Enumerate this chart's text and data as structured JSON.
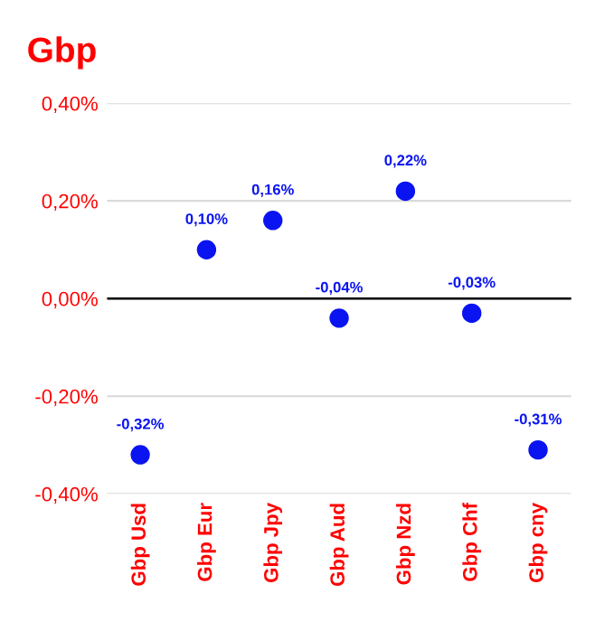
{
  "chart_data": {
    "type": "scatter",
    "title": "Gbp",
    "categories": [
      "Gbp Usd",
      "Gbp Eur",
      "Gbp Jpy",
      "Gbp Aud",
      "Gbp Nzd",
      "Gbp Chf",
      "Gbp cny"
    ],
    "series": [
      {
        "color": "#0a14f0",
        "values": [
          -0.32,
          0.1,
          0.16,
          -0.04,
          0.22,
          -0.03,
          -0.31
        ],
        "value_labels": [
          "-0,32%",
          "0,10%",
          "0,16%",
          "-0,04%",
          "0,22%",
          "-0,03%",
          "-0,31%"
        ]
      }
    ],
    "ylim": [
      -0.4,
      0.4
    ],
    "yticks": [
      {
        "value": -0.4,
        "label": "-0,40%"
      },
      {
        "value": -0.2,
        "label": "-0,20%"
      },
      {
        "value": 0,
        "label": "0,00%"
      },
      {
        "value": 0.2,
        "label": "0,20%"
      },
      {
        "value": 0.4,
        "label": "0,40%"
      }
    ],
    "ref_lines": [
      {
        "axis": "y",
        "value": 0,
        "color": "#000000"
      }
    ],
    "grid": "y",
    "marker": "circle",
    "legend": false
  }
}
